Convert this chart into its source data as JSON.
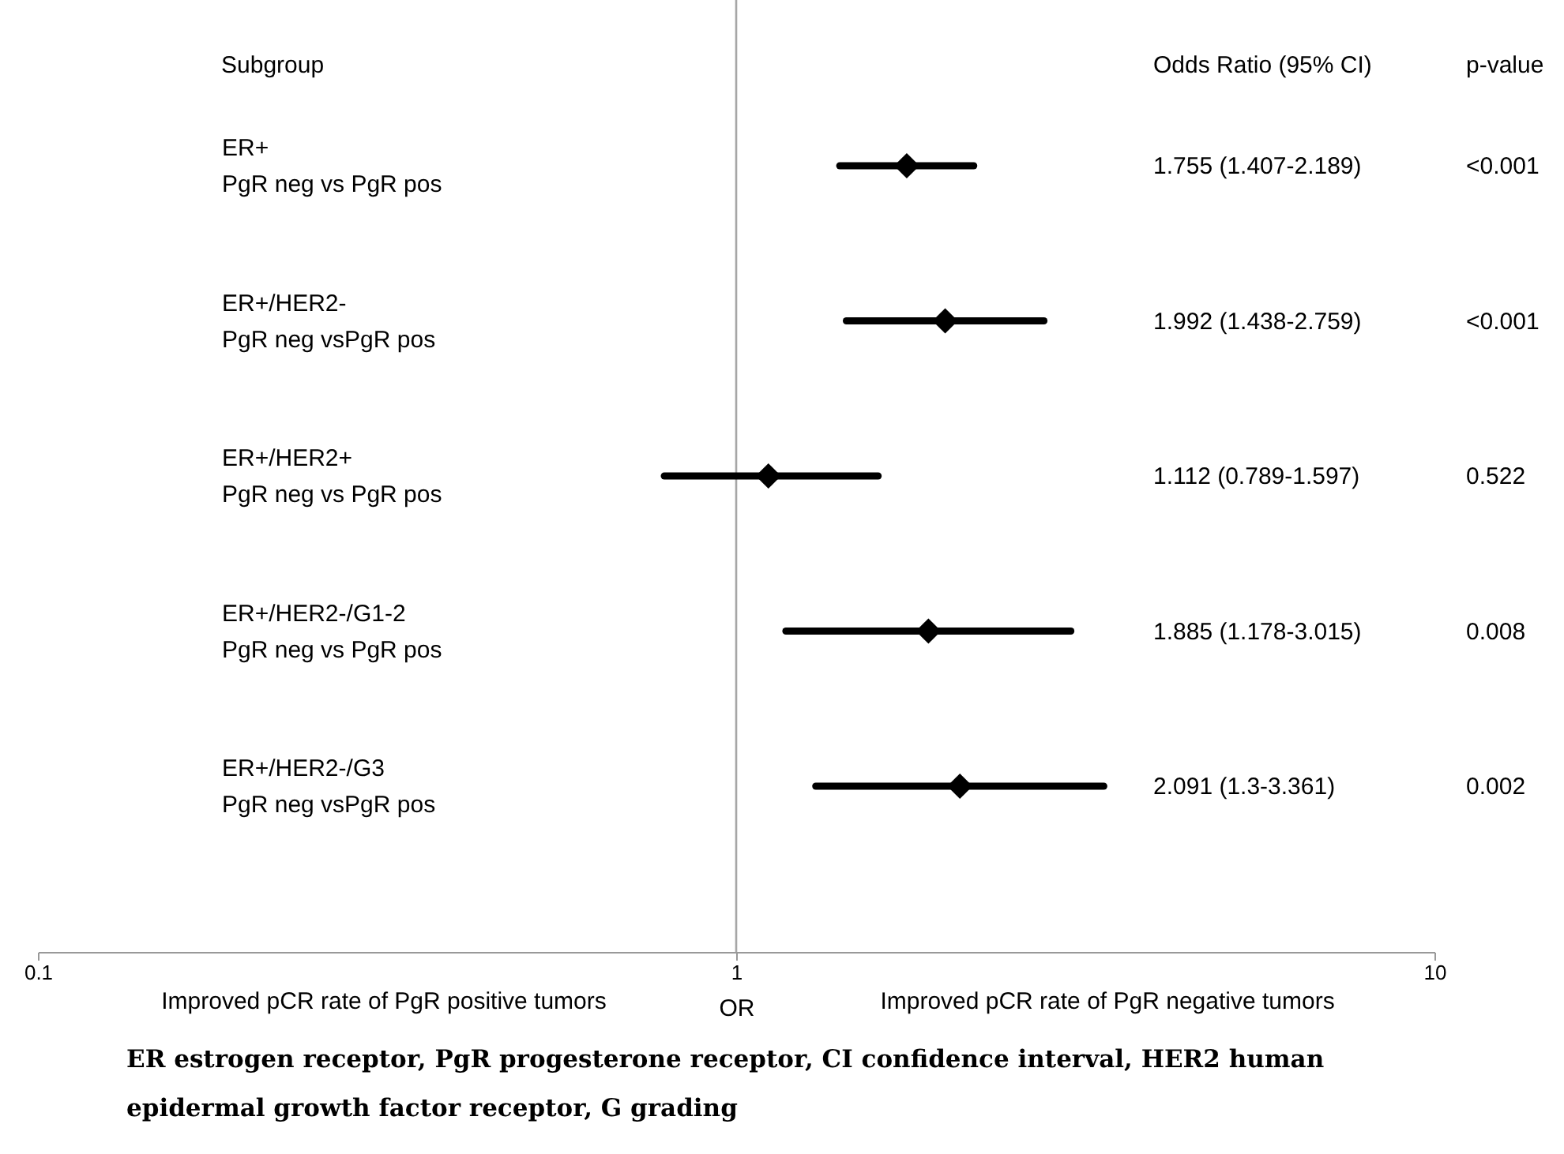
{
  "chart_data": {
    "type": "scatter",
    "orientation": "horizontal",
    "xlabel": "OR",
    "categories": [
      "ER+\nPgR neg vs PgR pos",
      "ER+/HER2-\nPgR neg vsPgR pos",
      "ER+/HER2+\nPgR neg vs PgR pos",
      "ER+/HER2-/G1-2\nPgR neg vs PgR pos",
      "ER+/HER2-/G3\nPgR neg vsPgR pos"
    ],
    "values": [
      1.755,
      1.992,
      1.112,
      1.885,
      2.091
    ],
    "errors": [
      [
        1.407,
        2.189
      ],
      [
        1.438,
        2.759
      ],
      [
        0.789,
        1.597
      ],
      [
        1.178,
        3.015
      ],
      [
        1.3,
        3.361
      ]
    ],
    "color": "#000000",
    "marker": "diamond",
    "log": "x",
    "xlim": [
      0.1,
      10
    ],
    "xticks": [
      0.1,
      1,
      10
    ],
    "grid": false,
    "ref_lines": [
      {
        "axis": "x",
        "value": 1,
        "color": "#a6a6a6"
      }
    ],
    "annotations": [
      "Subgroup",
      "Odds Ratio (95% CI)",
      "p-value",
      "Improved pCR rate of PgR positive tumors",
      "Improved pCR rate of PgR negative tumors",
      "1.755 (1.407-2.189)",
      "<0.001",
      "1.992 (1.438-2.759)",
      "<0.001",
      "1.112 (0.789-1.597)",
      "0.522",
      "1.885 (1.178-3.015)",
      "0.008",
      "2.091 (1.3-3.361)",
      "0.002",
      "ER estrogen receptor, PgR progesterone receptor, CI confidence interval, HER2 human epidermal growth factor receptor, G grading"
    ]
  }
}
